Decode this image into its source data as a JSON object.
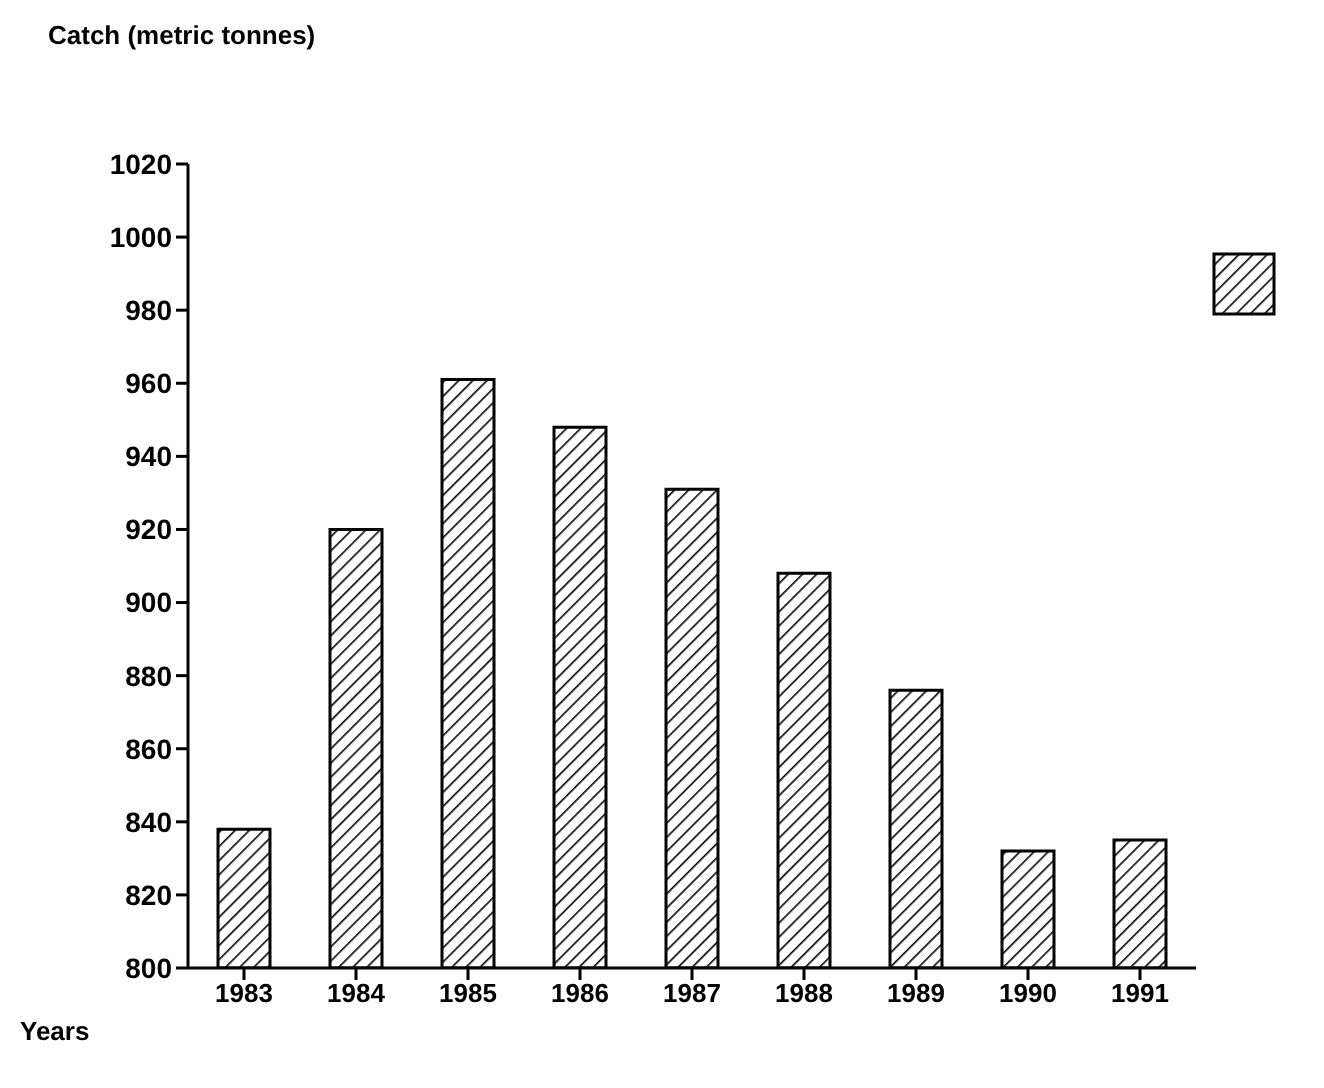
{
  "chart_data": {
    "type": "bar",
    "ylabel": "Catch (metric tonnes)",
    "xlabel": "Years",
    "categories": [
      "1983",
      "1984",
      "1985",
      "1986",
      "1987",
      "1988",
      "1989",
      "1990",
      "1991"
    ],
    "values": [
      838,
      920,
      961,
      948,
      931,
      908,
      876,
      832,
      835
    ],
    "color": "#000000",
    "ylim": [
      800,
      1020
    ],
    "yticks": [
      800,
      820,
      840,
      860,
      880,
      900,
      920,
      940,
      960,
      980,
      1000,
      1020
    ],
    "grid": false
  }
}
